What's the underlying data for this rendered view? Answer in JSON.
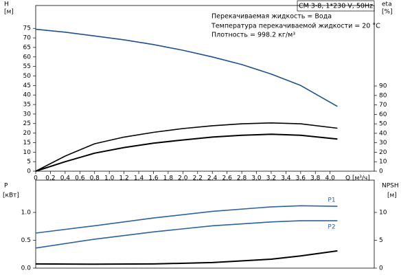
{
  "chart_data": [
    {
      "type": "line",
      "title": "CM 3-8, 1*230 V, 50Hz",
      "annotations": [
        "Перекачиваемая жидкость = Вода",
        "Температура перекачиваемой жидкости = 20 °C",
        "Плотность = 998.2 кг/м³"
      ],
      "ylabel": "H",
      "yunit": "[м]",
      "y2label": "eta",
      "y2unit": "[%]",
      "xlabel": "Q [м³/ч]",
      "x": [
        0,
        0.4,
        0.8,
        1.2,
        1.6,
        2.0,
        2.4,
        2.8,
        3.2,
        3.6,
        4.1
      ],
      "xlim": [
        0,
        4.6
      ],
      "xticks": [
        0,
        {
          "value": 0.2,
          "label": "0,2"
        },
        {
          "value": 0.4,
          "label": "0,4"
        },
        {
          "value": 0.6,
          "label": "0,6"
        },
        {
          "value": 0.8,
          "label": "0,8"
        },
        {
          "value": 1.0,
          "label": "1,0"
        },
        {
          "value": 1.2,
          "label": "1,2"
        },
        {
          "value": 1.4,
          "label": "1,4"
        },
        {
          "value": 1.6,
          "label": "1,6"
        },
        {
          "value": 1.8,
          "label": "1,8"
        },
        {
          "value": 2.0,
          "label": "2,0"
        },
        {
          "value": 2.2,
          "label": "2,2"
        },
        {
          "value": 2.4,
          "label": "2,4"
        },
        {
          "value": 2.6,
          "label": "2,6"
        },
        {
          "value": 2.8,
          "label": "2,8"
        },
        {
          "value": 3.0,
          "label": "3,0"
        },
        {
          "value": 3.2,
          "label": "3,2"
        },
        {
          "value": 3.4,
          "label": "3,4"
        },
        {
          "value": 3.6,
          "label": "3,6"
        },
        {
          "value": 3.8,
          "label": "3,8"
        },
        {
          "value": 4.0,
          "label": "4,0"
        }
      ],
      "ylim": [
        0,
        87
      ],
      "yticks": [
        0,
        5,
        10,
        15,
        20,
        25,
        30,
        35,
        40,
        45,
        50,
        55,
        60,
        65,
        70,
        75
      ],
      "y2lim": [
        0,
        175
      ],
      "y2ticks": [
        0,
        10,
        20,
        30,
        40,
        50,
        60,
        70,
        80,
        90
      ],
      "series": [
        {
          "color": "#1f4f8f",
          "values": [
            74.5,
            73,
            71,
            69,
            66.5,
            63.5,
            60,
            56,
            51,
            45,
            34
          ]
        },
        {
          "color": "#000000",
          "axis": "y2",
          "values": [
            0,
            16,
            29,
            36,
            41,
            45,
            48,
            50,
            51,
            50,
            45.4
          ]
        },
        {
          "color": "#000000",
          "axis": "y2",
          "values": [
            0,
            10,
            19,
            25,
            29.6,
            33,
            36,
            38,
            39,
            38,
            34
          ]
        }
      ]
    },
    {
      "type": "line",
      "ylabel": "P",
      "yunit": "[кВт]",
      "y2label": "NPSH",
      "y2unit": "[м]",
      "x": [
        0,
        0.8,
        1.6,
        2.4,
        3.2,
        3.6,
        4.1
      ],
      "xlim": [
        0,
        4.6
      ],
      "ylim": [
        0,
        1.58
      ],
      "yticks": [
        {
          "value": 0,
          "label": "0.0"
        },
        0.5,
        {
          "value": 1,
          "label": "1.0"
        }
      ],
      "y2lim": [
        0,
        15.8
      ],
      "y2ticks": [
        0,
        5,
        10
      ],
      "series": [
        {
          "name": "P1",
          "color": "#2a62a0",
          "values": [
            0.63,
            0.76,
            0.9,
            1.02,
            1.1,
            1.12,
            1.11
          ]
        },
        {
          "name": "P2",
          "color": "#2a62a0",
          "values": [
            0.36,
            0.52,
            0.65,
            0.76,
            0.83,
            0.85,
            0.85
          ]
        },
        {
          "color": "#000000",
          "axis": "y2",
          "values": [
            0.75,
            0.7,
            0.75,
            1.0,
            1.6,
            2.2,
            3.1
          ]
        }
      ]
    }
  ]
}
